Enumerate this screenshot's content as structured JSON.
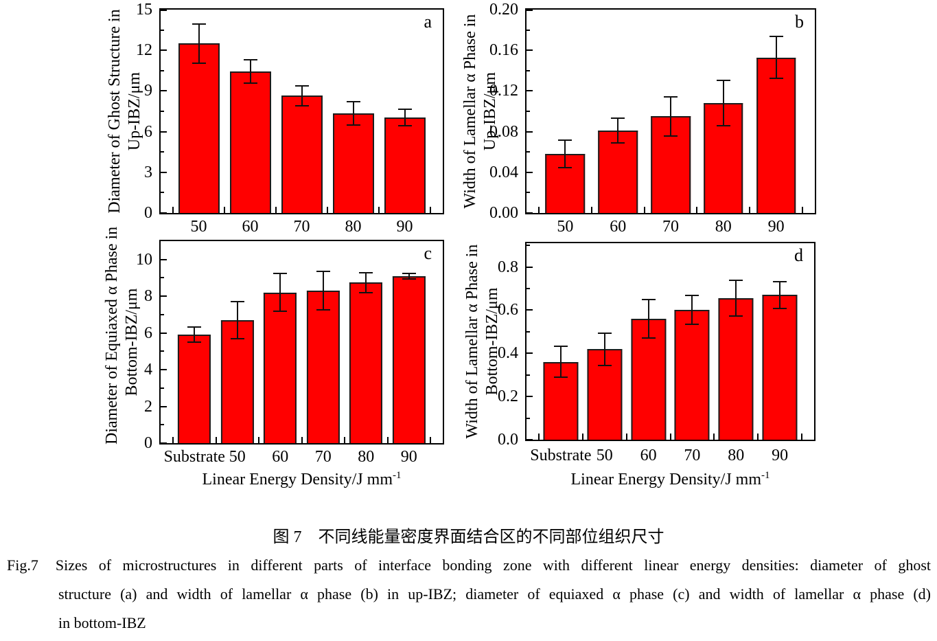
{
  "figure": {
    "caption_zh": "图 7　不同线能量密度界面结合区的不同部位组织尺寸",
    "caption_en_label": "Fig.7",
    "caption_en_lines": [
      "Sizes of microstructures in different parts of interface bonding zone with different linear energy densities: diameter of ghost",
      "structure (a) and width of lamellar α phase (b) in up-IBZ; diameter of equiaxed α phase (c) and width of lamellar α phase (d)",
      "in bottom-IBZ"
    ]
  },
  "colors": {
    "bar_fill": "#ff0000",
    "bar_border": "#1c1c1c",
    "error_bar": "#111111",
    "axis": "#000000",
    "text": "#000000",
    "background": "#ffffff"
  },
  "chart_data": [
    {
      "id": "a",
      "type": "bar",
      "panel_label": "a",
      "ylabel_line1": "Diameter of Ghost Structure in",
      "ylabel_line2": "Up-IBZ/μm",
      "categories": [
        "50",
        "60",
        "70",
        "80",
        "90"
      ],
      "values": [
        12.5,
        10.45,
        8.65,
        7.35,
        7.05
      ],
      "errors": [
        1.5,
        0.9,
        0.8,
        0.9,
        0.65
      ],
      "ylim": [
        0,
        15
      ],
      "yticks": [
        "0",
        "3",
        "6",
        "9",
        "12",
        "15"
      ],
      "grid": false,
      "legend": null
    },
    {
      "id": "b",
      "type": "bar",
      "panel_label": "b",
      "ylabel_line1": "Width of Lamellar α Phase in",
      "ylabel_line2": "Up-IBZ/μm",
      "categories": [
        "50",
        "60",
        "70",
        "80",
        "90"
      ],
      "values": [
        0.058,
        0.081,
        0.095,
        0.108,
        0.153
      ],
      "errors": [
        0.014,
        0.013,
        0.02,
        0.023,
        0.021
      ],
      "ylim": [
        0,
        0.2
      ],
      "yticks": [
        "0.00",
        "0.04",
        "0.08",
        "0.12",
        "0.16",
        "0.20"
      ],
      "grid": false,
      "legend": null
    },
    {
      "id": "c",
      "type": "bar",
      "panel_label": "c",
      "ylabel_line1": "Diameter of Equiaxed α Phase in",
      "ylabel_line2": "Bottom-IBZ/μm",
      "xlabel": "Linear Energy Density/J mm",
      "xlabel_sup": "-1",
      "categories": [
        "Substrate",
        "50",
        "60",
        "70",
        "80",
        "90"
      ],
      "values": [
        5.9,
        6.7,
        8.2,
        8.3,
        8.75,
        9.1
      ],
      "errors": [
        0.45,
        1.05,
        1.07,
        1.08,
        0.58,
        0.18
      ],
      "ylim": [
        0,
        11
      ],
      "yticks": [
        "0",
        "2",
        "4",
        "6",
        "8",
        "10"
      ],
      "grid": false,
      "legend": null
    },
    {
      "id": "d",
      "type": "bar",
      "panel_label": "d",
      "ylabel_line1": "Width of Lamellar α Phase in",
      "ylabel_line2": "Bottom-IBZ/μm",
      "xlabel": "Linear Energy Density/J mm",
      "xlabel_sup": "-1",
      "categories": [
        "Substrate",
        "50",
        "60",
        "70",
        "80",
        "90"
      ],
      "values": [
        0.36,
        0.42,
        0.56,
        0.6,
        0.655,
        0.67
      ],
      "errors": [
        0.075,
        0.078,
        0.093,
        0.07,
        0.085,
        0.065
      ],
      "ylim": [
        0,
        0.91
      ],
      "yticks": [
        "0.0",
        "0.2",
        "0.4",
        "0.6",
        "0.8"
      ],
      "grid": false,
      "legend": null
    }
  ]
}
